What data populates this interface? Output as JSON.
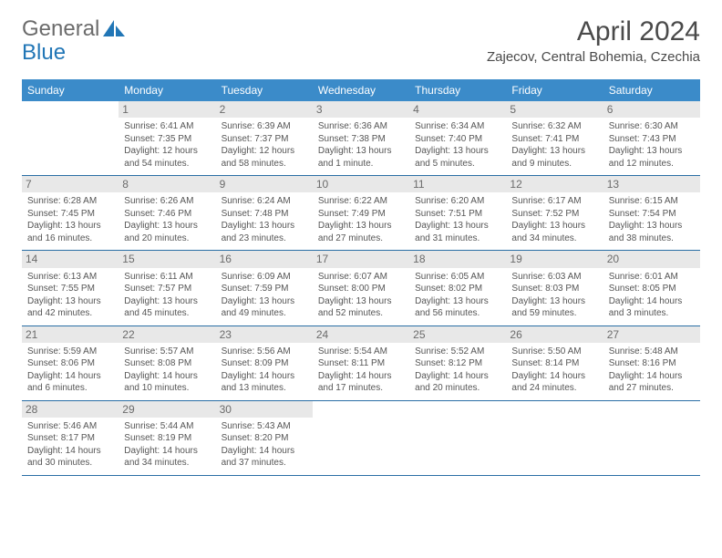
{
  "logo": {
    "part1": "General",
    "part2": "Blue"
  },
  "title": "April 2024",
  "location": "Zajecov, Central Bohemia, Czechia",
  "colors": {
    "header_bg": "#3b8bc9",
    "header_text": "#ffffff",
    "divider": "#2a6ea5",
    "daynum_bg": "#e8e8e8",
    "body_text": "#555555",
    "title_text": "#4a4a4a",
    "logo_gray": "#6b6b6b",
    "logo_blue": "#2176b6"
  },
  "day_names": [
    "Sunday",
    "Monday",
    "Tuesday",
    "Wednesday",
    "Thursday",
    "Friday",
    "Saturday"
  ],
  "start_offset": 1,
  "days": [
    {
      "n": 1,
      "sr": "6:41 AM",
      "ss": "7:35 PM",
      "d1": "12 hours",
      "d2": "and 54 minutes."
    },
    {
      "n": 2,
      "sr": "6:39 AM",
      "ss": "7:37 PM",
      "d1": "12 hours",
      "d2": "and 58 minutes."
    },
    {
      "n": 3,
      "sr": "6:36 AM",
      "ss": "7:38 PM",
      "d1": "13 hours",
      "d2": "and 1 minute."
    },
    {
      "n": 4,
      "sr": "6:34 AM",
      "ss": "7:40 PM",
      "d1": "13 hours",
      "d2": "and 5 minutes."
    },
    {
      "n": 5,
      "sr": "6:32 AM",
      "ss": "7:41 PM",
      "d1": "13 hours",
      "d2": "and 9 minutes."
    },
    {
      "n": 6,
      "sr": "6:30 AM",
      "ss": "7:43 PM",
      "d1": "13 hours",
      "d2": "and 12 minutes."
    },
    {
      "n": 7,
      "sr": "6:28 AM",
      "ss": "7:45 PM",
      "d1": "13 hours",
      "d2": "and 16 minutes."
    },
    {
      "n": 8,
      "sr": "6:26 AM",
      "ss": "7:46 PM",
      "d1": "13 hours",
      "d2": "and 20 minutes."
    },
    {
      "n": 9,
      "sr": "6:24 AM",
      "ss": "7:48 PM",
      "d1": "13 hours",
      "d2": "and 23 minutes."
    },
    {
      "n": 10,
      "sr": "6:22 AM",
      "ss": "7:49 PM",
      "d1": "13 hours",
      "d2": "and 27 minutes."
    },
    {
      "n": 11,
      "sr": "6:20 AM",
      "ss": "7:51 PM",
      "d1": "13 hours",
      "d2": "and 31 minutes."
    },
    {
      "n": 12,
      "sr": "6:17 AM",
      "ss": "7:52 PM",
      "d1": "13 hours",
      "d2": "and 34 minutes."
    },
    {
      "n": 13,
      "sr": "6:15 AM",
      "ss": "7:54 PM",
      "d1": "13 hours",
      "d2": "and 38 minutes."
    },
    {
      "n": 14,
      "sr": "6:13 AM",
      "ss": "7:55 PM",
      "d1": "13 hours",
      "d2": "and 42 minutes."
    },
    {
      "n": 15,
      "sr": "6:11 AM",
      "ss": "7:57 PM",
      "d1": "13 hours",
      "d2": "and 45 minutes."
    },
    {
      "n": 16,
      "sr": "6:09 AM",
      "ss": "7:59 PM",
      "d1": "13 hours",
      "d2": "and 49 minutes."
    },
    {
      "n": 17,
      "sr": "6:07 AM",
      "ss": "8:00 PM",
      "d1": "13 hours",
      "d2": "and 52 minutes."
    },
    {
      "n": 18,
      "sr": "6:05 AM",
      "ss": "8:02 PM",
      "d1": "13 hours",
      "d2": "and 56 minutes."
    },
    {
      "n": 19,
      "sr": "6:03 AM",
      "ss": "8:03 PM",
      "d1": "13 hours",
      "d2": "and 59 minutes."
    },
    {
      "n": 20,
      "sr": "6:01 AM",
      "ss": "8:05 PM",
      "d1": "14 hours",
      "d2": "and 3 minutes."
    },
    {
      "n": 21,
      "sr": "5:59 AM",
      "ss": "8:06 PM",
      "d1": "14 hours",
      "d2": "and 6 minutes."
    },
    {
      "n": 22,
      "sr": "5:57 AM",
      "ss": "8:08 PM",
      "d1": "14 hours",
      "d2": "and 10 minutes."
    },
    {
      "n": 23,
      "sr": "5:56 AM",
      "ss": "8:09 PM",
      "d1": "14 hours",
      "d2": "and 13 minutes."
    },
    {
      "n": 24,
      "sr": "5:54 AM",
      "ss": "8:11 PM",
      "d1": "14 hours",
      "d2": "and 17 minutes."
    },
    {
      "n": 25,
      "sr": "5:52 AM",
      "ss": "8:12 PM",
      "d1": "14 hours",
      "d2": "and 20 minutes."
    },
    {
      "n": 26,
      "sr": "5:50 AM",
      "ss": "8:14 PM",
      "d1": "14 hours",
      "d2": "and 24 minutes."
    },
    {
      "n": 27,
      "sr": "5:48 AM",
      "ss": "8:16 PM",
      "d1": "14 hours",
      "d2": "and 27 minutes."
    },
    {
      "n": 28,
      "sr": "5:46 AM",
      "ss": "8:17 PM",
      "d1": "14 hours",
      "d2": "and 30 minutes."
    },
    {
      "n": 29,
      "sr": "5:44 AM",
      "ss": "8:19 PM",
      "d1": "14 hours",
      "d2": "and 34 minutes."
    },
    {
      "n": 30,
      "sr": "5:43 AM",
      "ss": "8:20 PM",
      "d1": "14 hours",
      "d2": "and 37 minutes."
    }
  ],
  "labels": {
    "sunrise": "Sunrise: ",
    "sunset": "Sunset: ",
    "daylight": "Daylight: "
  }
}
